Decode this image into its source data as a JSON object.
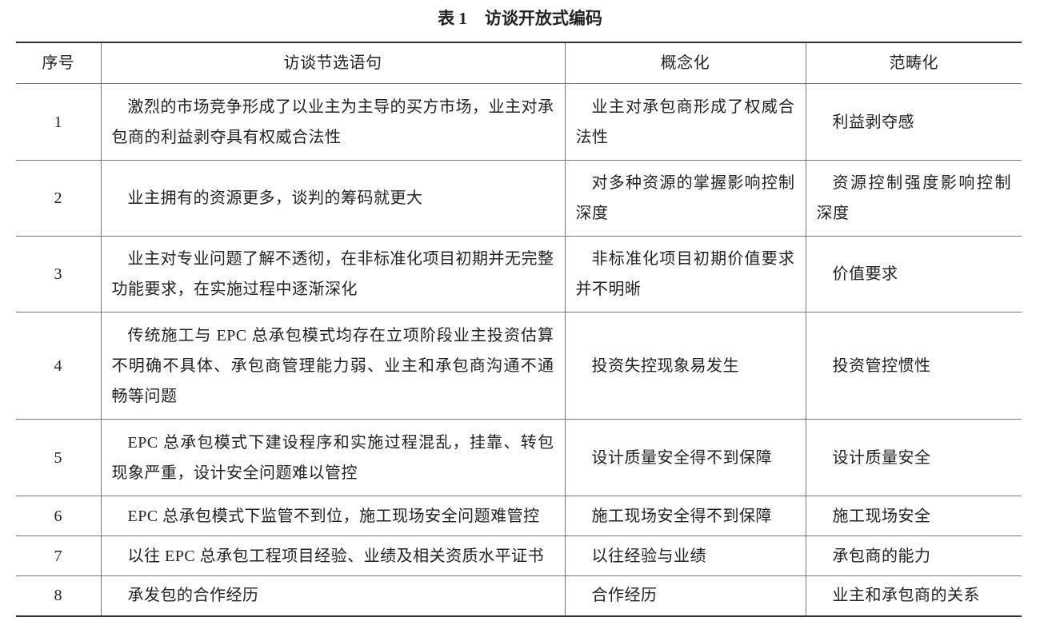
{
  "title": {
    "number": "表 1",
    "text": "访谈开放式编码"
  },
  "table": {
    "headers": [
      "序号",
      "访谈节选语句",
      "概念化",
      "范畴化"
    ],
    "rows": [
      [
        "1",
        "激烈的市场竞争形成了以业主为主导的买方市场，业主对承包商的利益剥夺具有权威合法性",
        "业主对承包商形成了权威合法性",
        "利益剥夺感"
      ],
      [
        "2",
        "业主拥有的资源更多，谈判的筹码就更大",
        "对多种资源的掌握影响控制深度",
        "资源控制强度影响控制深度"
      ],
      [
        "3",
        "业主对专业问题了解不透彻，在非标准化项目初期并无完整功能要求，在实施过程中逐渐深化",
        "非标准化项目初期价值要求并不明晰",
        "价值要求"
      ],
      [
        "4",
        "传统施工与 EPC 总承包模式均存在立项阶段业主投资估算不明确不具体、承包商管理能力弱、业主和承包商沟通不通畅等问题",
        "投资失控现象易发生",
        "投资管控惯性"
      ],
      [
        "5",
        "EPC 总承包模式下建设程序和实施过程混乱，挂靠、转包现象严重，设计安全问题难以管控",
        "设计质量安全得不到保障",
        "设计质量安全"
      ],
      [
        "6",
        "EPC 总承包模式下监管不到位，施工现场安全问题难管控",
        "施工现场安全得不到保障",
        "施工现场安全"
      ],
      [
        "7",
        "以往 EPC 总承包工程项目经验、业绩及相关资质水平证书",
        "以往经验与业绩",
        "承包商的能力"
      ],
      [
        "8",
        "承发包的合作经历",
        "合作经历",
        "业主和承包商的关系"
      ]
    ]
  }
}
